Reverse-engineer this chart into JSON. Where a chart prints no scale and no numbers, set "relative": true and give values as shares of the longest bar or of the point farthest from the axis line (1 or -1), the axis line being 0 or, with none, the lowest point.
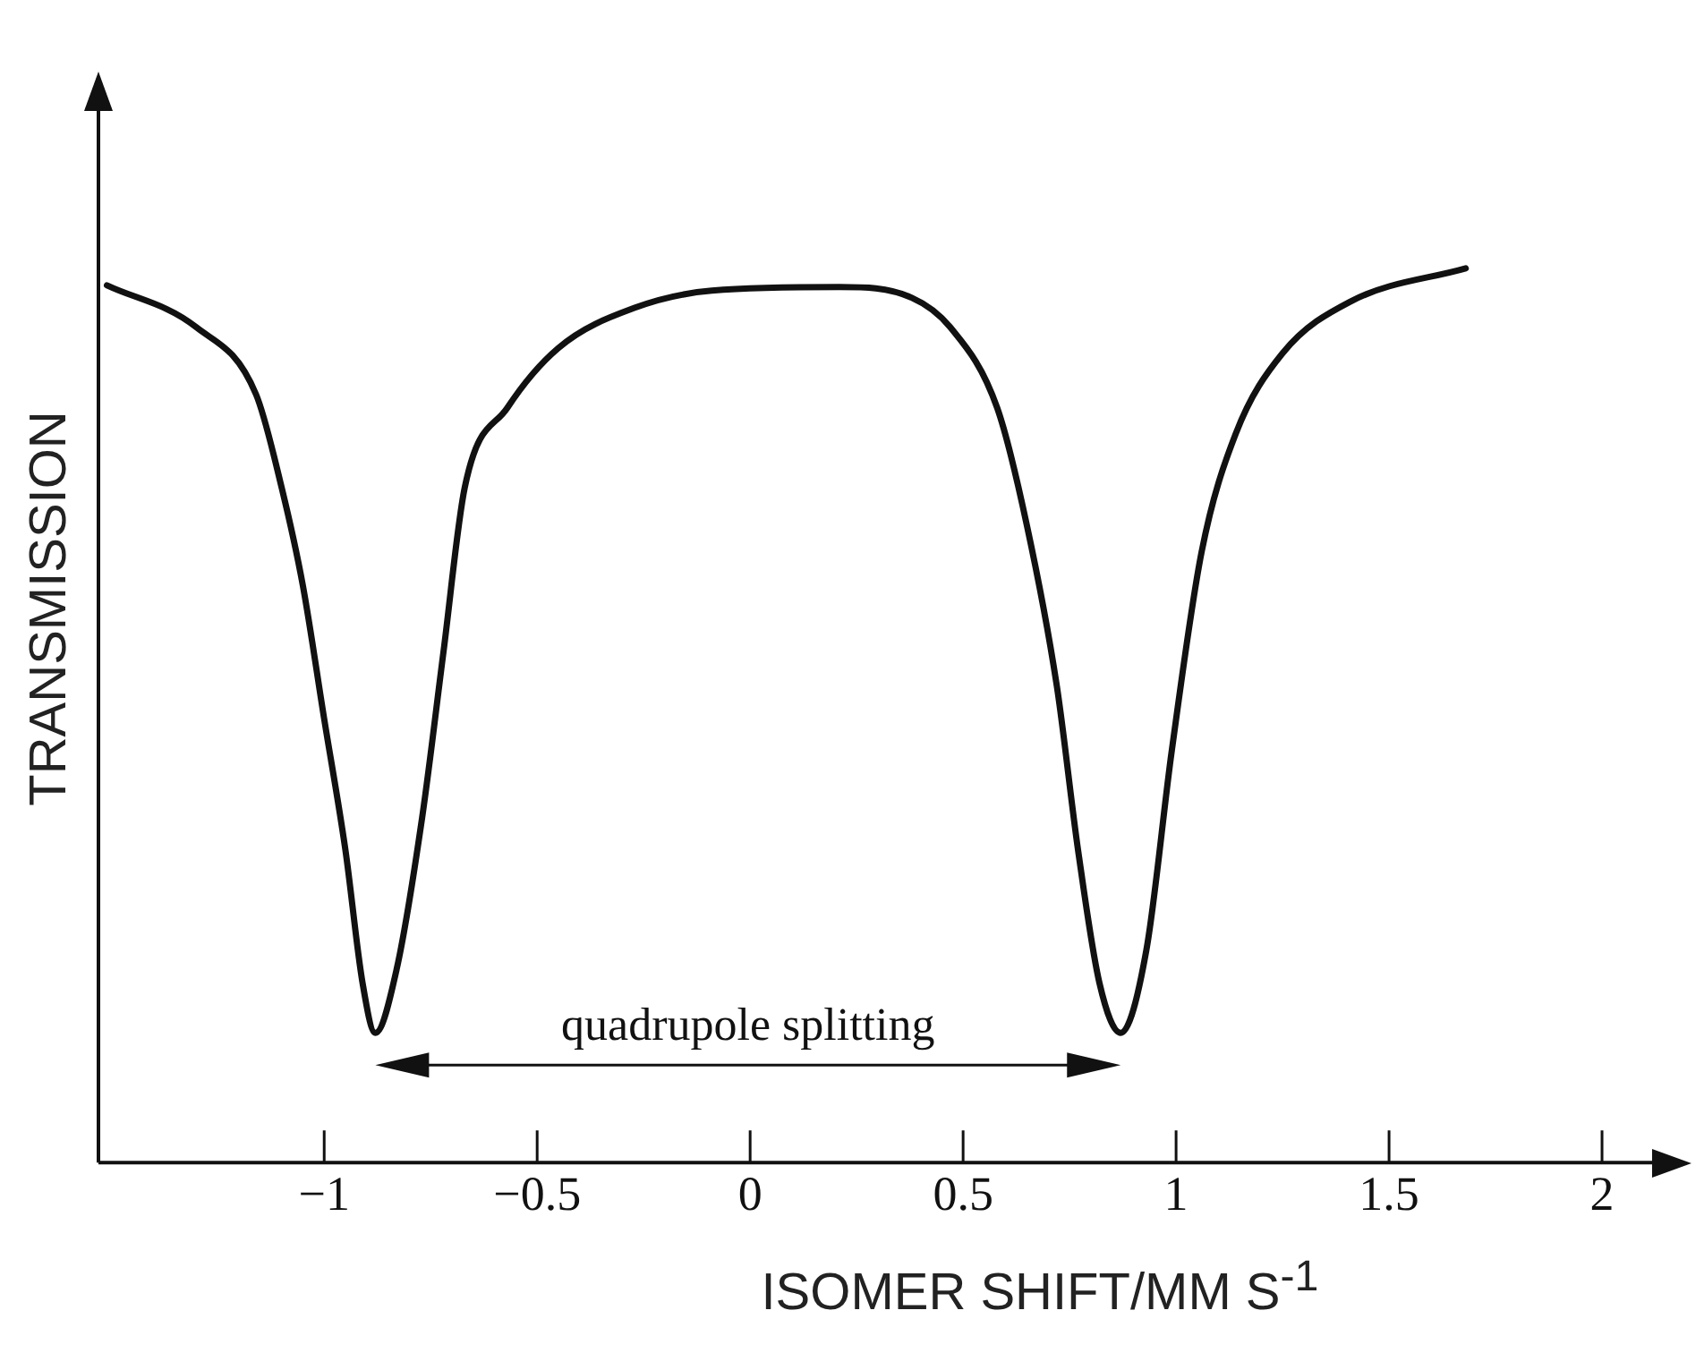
{
  "chart_data": {
    "type": "line",
    "relative": true,
    "xlabel": "ISOMER SHIFT/MM S$^{-1}$",
    "ylabel": "TRANSMISSION",
    "x": [
      -1.51,
      -1.3,
      -1.16,
      -1.1,
      -1.05,
      -1.0,
      -0.95,
      -0.91,
      -0.88,
      -0.83,
      -0.77,
      -0.72,
      -0.67,
      -0.57,
      -0.45,
      -0.27,
      -0.09,
      0.21,
      0.38,
      0.47,
      0.58,
      0.65,
      0.72,
      0.77,
      0.82,
      0.87,
      0.93,
      0.99,
      1.06,
      1.14,
      1.25,
      1.41,
      1.68
    ],
    "series": [
      {
        "color": "#111111",
        "values": [
          0.981,
          0.934,
          0.859,
          0.755,
          0.645,
          0.496,
          0.349,
          0.201,
          0.145,
          0.216,
          0.386,
          0.571,
          0.755,
          0.844,
          0.911,
          0.956,
          0.975,
          0.979,
          0.967,
          0.934,
          0.844,
          0.712,
          0.533,
          0.349,
          0.201,
          0.145,
          0.237,
          0.461,
          0.683,
          0.815,
          0.905,
          0.963,
          1.0
        ]
      }
    ],
    "xlim": [
      -1.53,
      2.21
    ],
    "xticks": [
      {
        "value": -1,
        "label": "−1"
      },
      {
        "value": -0.5,
        "label": "−0.5"
      },
      0,
      0.5,
      1,
      1.5,
      2
    ],
    "annotations": [
      "quadrupole splitting"
    ]
  }
}
